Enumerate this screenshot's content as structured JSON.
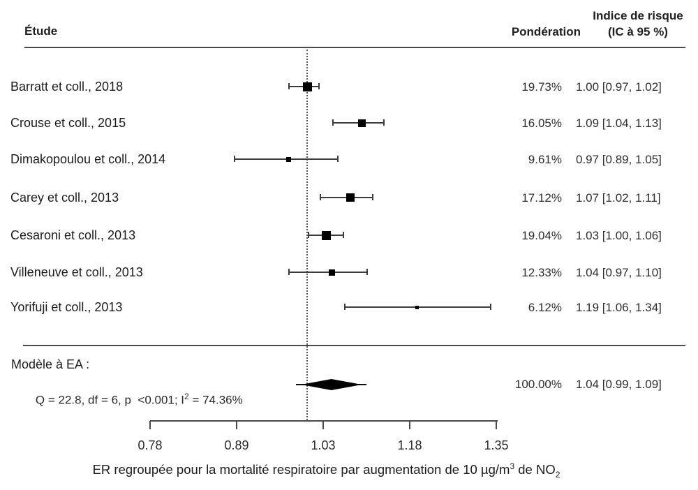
{
  "header": {
    "study_col": "Étude",
    "weight_col": "Pondération",
    "effect_col_line1": "Indice de risque",
    "effect_col_line2": "(IC à 95 %)"
  },
  "chart_data": {
    "type": "forest",
    "x_scale": "log",
    "null_line_value": 1.0,
    "x_ticks": [
      "0.78",
      "0.89",
      "1.03",
      "1.18",
      "1.35"
    ],
    "x_tick_values": [
      0.78,
      0.89,
      1.03,
      1.18,
      1.35
    ],
    "studies": [
      {
        "label": "Barratt et coll., 2018",
        "weight": "19.73%",
        "estimate": 1.0,
        "ci_low": 0.97,
        "ci_high": 1.02,
        "ci_text": "1.00 [0.97, 1.02]"
      },
      {
        "label": "Crouse et coll., 2015",
        "weight": "16.05%",
        "estimate": 1.09,
        "ci_low": 1.04,
        "ci_high": 1.13,
        "ci_text": "1.09 [1.04, 1.13]"
      },
      {
        "label": "Dimakopoulou et coll., 2014",
        "weight": "9.61%",
        "estimate": 0.97,
        "ci_low": 0.89,
        "ci_high": 1.05,
        "ci_text": "0.97 [0.89, 1.05]"
      },
      {
        "label": "Carey et coll., 2013",
        "weight": "17.12%",
        "estimate": 1.07,
        "ci_low": 1.02,
        "ci_high": 1.11,
        "ci_text": "1.07 [1.02, 1.11]"
      },
      {
        "label": "Cesaroni et coll., 2013",
        "weight": "19.04%",
        "estimate": 1.03,
        "ci_low": 1.0,
        "ci_high": 1.06,
        "ci_text": "1.03 [1.00, 1.06]"
      },
      {
        "label": "Villeneuve et coll., 2013",
        "weight": "12.33%",
        "estimate": 1.04,
        "ci_low": 0.97,
        "ci_high": 1.1,
        "ci_text": "1.04 [0.97, 1.10]"
      },
      {
        "label": "Yorifuji et coll., 2013",
        "weight": "6.12%",
        "estimate": 1.19,
        "ci_low": 1.06,
        "ci_high": 1.34,
        "ci_text": "1.19 [1.06, 1.34]"
      }
    ],
    "summary": {
      "model_label": "Modèle à EA :",
      "stats_prefix": "Q = 22.8, df = 6, p  <0.001; I",
      "stats_sup": "2",
      "stats_suffix": " = 74.36%",
      "weight": "100.00%",
      "estimate": 1.04,
      "ci_low": 0.99,
      "ci_high": 1.09,
      "ci_text": "1.04 [0.99, 1.09]"
    },
    "xlabel_parts": {
      "text": "ER regroupée pour la mortalité respiratoire par augmentation de 10 µg/m",
      "sup": "3",
      "mid": " de NO",
      "sub": "2"
    }
  },
  "colors": {
    "marker": "#000000",
    "line": "#4a4a4a",
    "text": "#1f1f1f"
  }
}
